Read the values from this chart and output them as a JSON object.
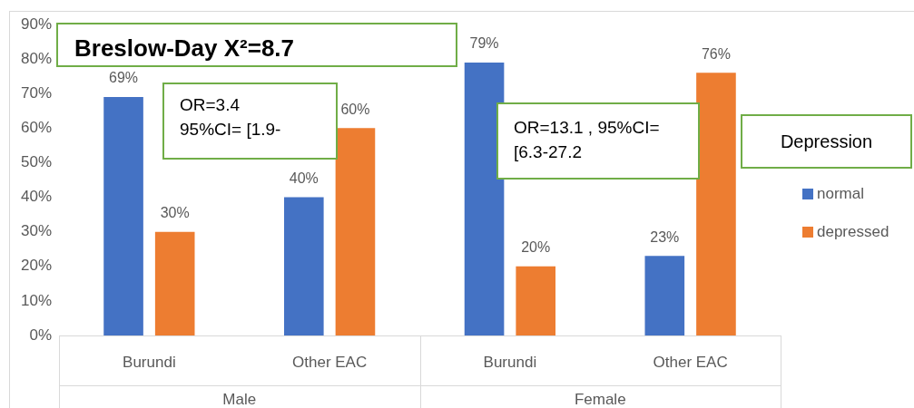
{
  "chart_data": {
    "type": "bar",
    "categories": [
      "Burundi",
      "Other EAC",
      "Burundi",
      "Other EAC"
    ],
    "series": [
      {
        "name": "normal",
        "color": "#4472c4",
        "values": [
          69,
          40,
          79,
          23
        ],
        "value_labels": [
          "69%",
          "40%",
          "79%",
          "23%"
        ]
      },
      {
        "name": "depressed",
        "color": "#ed7d31",
        "values": [
          30,
          60,
          20,
          76
        ],
        "value_labels": [
          "30%",
          "60%",
          "20%",
          "76%"
        ]
      }
    ],
    "ylim": [
      0,
      90
    ],
    "yticks": [
      {
        "value": 0,
        "label": "0%"
      },
      {
        "value": 10,
        "label": "10%"
      },
      {
        "value": 20,
        "label": "20%"
      },
      {
        "value": 30,
        "label": "30%"
      },
      {
        "value": 40,
        "label": "40%"
      },
      {
        "value": 50,
        "label": "50%"
      },
      {
        "value": 60,
        "label": "60%"
      },
      {
        "value": 70,
        "label": "70%"
      },
      {
        "value": 80,
        "label": "80%"
      },
      {
        "value": 90,
        "label": "90%"
      }
    ],
    "grid": false,
    "legend": "right",
    "legend_title": "Depression",
    "annotations": [
      "Breslow-Day X²=8.7",
      "OR=3.4\n95%CI= [1.9-",
      "OR=13.1 , 95%CI=\n[6.3-27.2",
      "Male",
      "Female"
    ]
  }
}
